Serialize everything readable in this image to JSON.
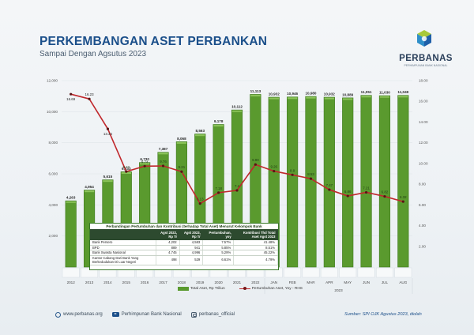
{
  "header": {
    "title": "PERKEMBANGAN ASET PERBANKAN",
    "subtitle": "Sampai Dengan Agsutus 2023"
  },
  "logo": {
    "name": "PERBANAS",
    "tagline": "PERHIMPUNAN BANK NASIONAL"
  },
  "colors": {
    "bar": "#5a9a2e",
    "bar_top": "#8cc45a",
    "line": "#c0282c",
    "marker": "#5a1414",
    "title": "#1b4f8a",
    "table_header": "#2d4a2f"
  },
  "legend": {
    "bar_label": "Total Aset, Rp Triliun",
    "line_label": "Pertumbuhan Aset, Yoy - RHS"
  },
  "footer": {
    "website": "www.perbanas.org",
    "youtube": "Perhimpunan Bank Nasional",
    "instagram": "perbanas_official",
    "source": "Sumber: SPI OJK Agustus 2023, diolah"
  },
  "inset_table": {
    "title": "Perbandingan Pertumbuhan dan Kontribusi (terhadap Total Aset) Menurut Kelompok Bank",
    "columns": [
      "",
      "Agst 2022, Rp Tr",
      "Agst 2023, Rp Tr",
      "Pertumbuhan, yoy",
      "Kontribusi Thd Total Aset Agst 2023"
    ],
    "rows": [
      [
        "Bank Persero",
        "4,202",
        "4,583",
        "7.57%",
        "41.48%"
      ],
      [
        "BPD",
        "889",
        "941",
        "5.85%",
        "8.51%"
      ],
      [
        "Bank Swasta Nasional",
        "4,745",
        "4,996",
        "5.29%",
        "45.22%"
      ],
      [
        "Kantor Cabang Dari Bank Yang Berkedudukan Di Luar Negeri",
        "498",
        "529",
        "6.61%",
        "4.79%"
      ]
    ]
  },
  "chart_data": {
    "type": "bar",
    "title": "PERKEMBANGAN ASET PERBANKAN",
    "subtitle": "Sampai Dengan Agsutus 2023",
    "categories": [
      "2012",
      "2013",
      "2014",
      "2015",
      "2016",
      "2017",
      "2018",
      "2019",
      "2020",
      "2021",
      "2022",
      "JAN",
      "FEB",
      "MAR",
      "APR",
      "MAY",
      "JUN",
      "JUL",
      "AUG"
    ],
    "group_label_2023": "2023",
    "series": [
      {
        "name": "Total Aset, Rp Triliun",
        "type": "bar",
        "axis": "left",
        "values": [
          4263,
          4954,
          5615,
          6133,
          6730,
          7387,
          8068,
          8563,
          9178,
          10112,
          11113,
          10932,
          10946,
          10980,
          10932,
          10889,
          11051,
          11030,
          11049
        ],
        "labels": [
          "4,263",
          "4,954",
          "5,615",
          "6,133",
          "6,730",
          "7,387",
          "8,068",
          "8,563",
          "9,178",
          "10,112",
          "11,113",
          "10,932",
          "10,946",
          "10,980",
          "10,932",
          "10,889",
          "11,051",
          "11,030",
          "11,049"
        ]
      },
      {
        "name": "Pertumbuhan Aset, Yoy - RHS",
        "type": "line",
        "axis": "right",
        "values": [
          16.69,
          16.23,
          13.34,
          9.22,
          9.74,
          9.76,
          9.21,
          6.13,
          7.18,
          7.4,
          9.9,
          9.26,
          8.9,
          8.53,
          7.47,
          6.86,
          7.21,
          6.82,
          6.32
        ],
        "labels": [
          "16.69",
          "16.23",
          "13.34",
          "9.22",
          "9.74",
          "9.76",
          "9.21",
          "6.13",
          "7.18",
          "7.4",
          "9.90",
          "9.26",
          "8.9",
          "8.53",
          "7.47",
          "6.86",
          "7.21",
          "6.82",
          "6.32"
        ]
      }
    ],
    "y_left": {
      "ticks": [
        "2,000",
        "4,000",
        "6,000",
        "8,000",
        "10,000",
        "12,000"
      ],
      "ylim": [
        0,
        12000
      ]
    },
    "y_right": {
      "ticks": [
        "2.00",
        "4.00",
        "6.00",
        "8.00",
        "10.00",
        "12.00",
        "14.00",
        "16.00",
        "18.00"
      ],
      "ylim": [
        0,
        18
      ]
    },
    "grid": true,
    "legend_position": "bottom"
  }
}
